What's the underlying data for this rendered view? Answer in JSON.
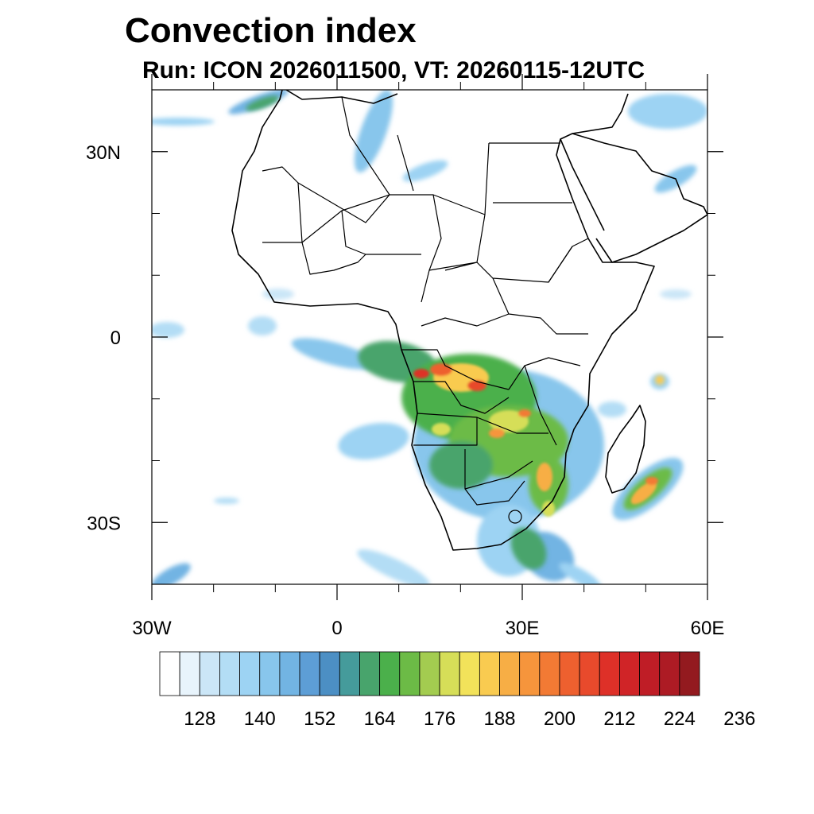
{
  "title": "Convection index",
  "subtitle": "Run: ICON 2026011500,  VT: 20260115-12UTC",
  "map": {
    "region": "Africa",
    "lon_range": [
      -30,
      60
    ],
    "lat_range": [
      -40,
      40
    ],
    "lon_ticks": [
      {
        "value": -30,
        "label": "30W"
      },
      {
        "value": 0,
        "label": "0"
      },
      {
        "value": 30,
        "label": "30E"
      },
      {
        "value": 60,
        "label": "60E"
      }
    ],
    "lat_ticks": [
      {
        "value": 30,
        "label": "30N"
      },
      {
        "value": 0,
        "label": "0"
      },
      {
        "value": -30,
        "label": "30S"
      }
    ],
    "minor_lon_ticks": [
      -20,
      -10,
      10,
      20,
      40,
      50
    ],
    "minor_lat_ticks": [
      20,
      10,
      -10,
      -20
    ]
  },
  "colorbar": {
    "colors": [
      "#ffffff",
      "#e8f4fc",
      "#cbe6f7",
      "#b3ddf5",
      "#9dd3f3",
      "#88c6ec",
      "#72b4e3",
      "#5d9ed6",
      "#4c8fc4",
      "#459b9b",
      "#48a46c",
      "#4bb04b",
      "#6cbb46",
      "#a3cc50",
      "#d6de58",
      "#f2e25a",
      "#f9cb50",
      "#f7ae45",
      "#f6953c",
      "#f27a34",
      "#ee602f",
      "#e84a2c",
      "#de3028",
      "#d02427",
      "#bf1d26",
      "#ad1b24",
      "#931a1f"
    ],
    "tick_labels": [
      "128",
      "140",
      "152",
      "164",
      "176",
      "188",
      "200",
      "212",
      "224",
      "236"
    ]
  }
}
